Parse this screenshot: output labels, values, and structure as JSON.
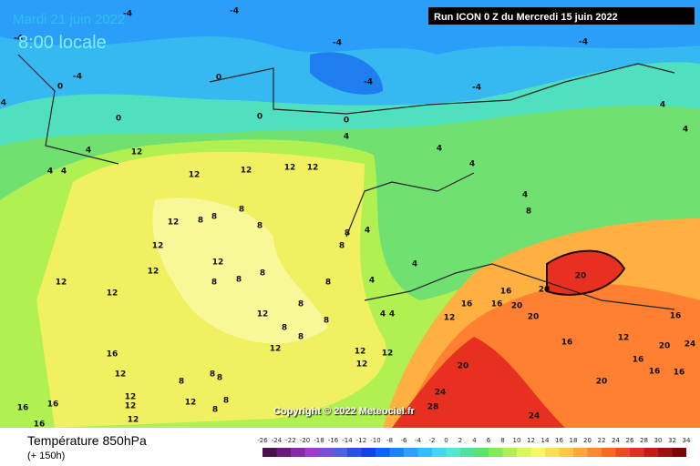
{
  "header": {
    "date": "Mardi 21 juin 2022",
    "time": "8:00 locale",
    "run": "Run ICON 0 Z du Mercredi 15 juin 2022"
  },
  "copyright": "Copyright © 2022 Meteociel.fr",
  "footer": {
    "parameter": "Température 850hPa",
    "lead": "(+ 150h)"
  },
  "colorbar": {
    "ticks": [
      -26,
      -24,
      -22,
      -20,
      -18,
      -16,
      -14,
      -12,
      -10,
      -8,
      -6,
      -4,
      -2,
      0,
      2,
      4,
      6,
      8,
      10,
      12,
      14,
      16,
      18,
      20,
      22,
      24,
      26,
      28,
      30,
      32,
      34
    ],
    "colors": [
      "#4b0f4b",
      "#6a1a7a",
      "#8a2aa0",
      "#a03cc8",
      "#7850d8",
      "#5060e0",
      "#2850e8",
      "#1040f0",
      "#1060ff",
      "#2080ff",
      "#30a0ff",
      "#30c0f8",
      "#40d8f0",
      "#50e8d0",
      "#50e0a0",
      "#60e070",
      "#88e858",
      "#b0f050",
      "#d8f858",
      "#f8f860",
      "#f8e050",
      "#ffc840",
      "#ffa838",
      "#ff8830",
      "#ff6828",
      "#f04828",
      "#e03020",
      "#c81818",
      "#a01010",
      "#780808"
    ]
  },
  "map_labels": [
    -4,
    -4,
    -4,
    -4,
    -4,
    -4,
    -4,
    -4,
    -4,
    0,
    0,
    0,
    0,
    0,
    4,
    4,
    4,
    4,
    4,
    4,
    12,
    12,
    12,
    12,
    12,
    12,
    12,
    12,
    12,
    12,
    12,
    12,
    12,
    12,
    12,
    12,
    12,
    8,
    8,
    8,
    8,
    8,
    8,
    8,
    8,
    8,
    8,
    8,
    8,
    8,
    8,
    4,
    4,
    4,
    4,
    4,
    16,
    16,
    16,
    16,
    16,
    16,
    16,
    16,
    16,
    16,
    20,
    20,
    20,
    20,
    20,
    20,
    24,
    24,
    24,
    28,
    4,
    4,
    4,
    8,
    12,
    16,
    20,
    12,
    12,
    12,
    12,
    12,
    16,
    8,
    8,
    8,
    8,
    8
  ]
}
